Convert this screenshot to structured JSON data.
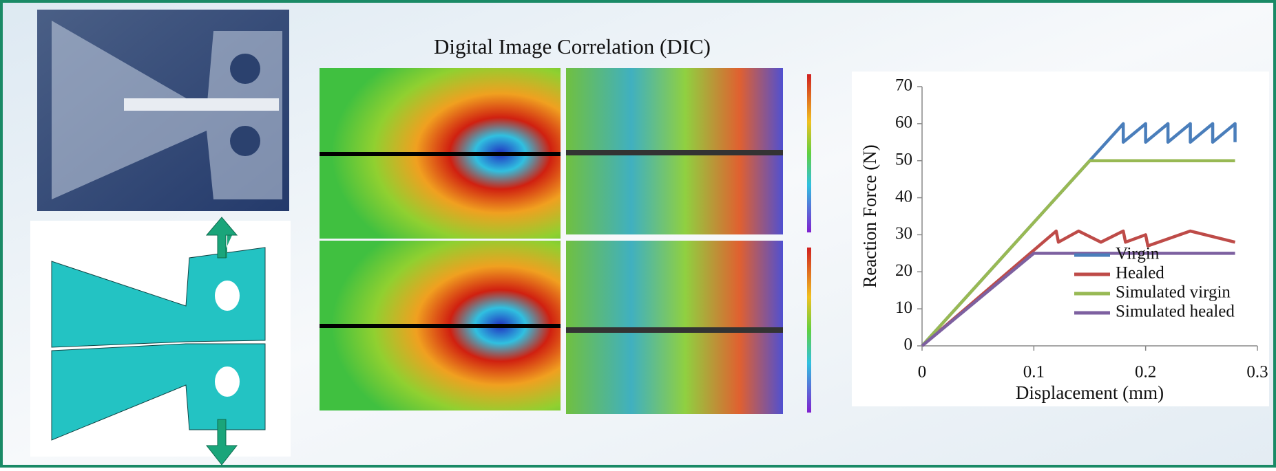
{
  "panel_title": "Digital Image Correlation (DIC)",
  "chart_data": {
    "type": "line",
    "ylabel": "Reaction Force (N)",
    "xlabel": "Displacement (mm)",
    "xlim": [
      0,
      0.3
    ],
    "ylim": [
      0,
      70
    ],
    "xticks": [
      0,
      0.1,
      0.2,
      0.3
    ],
    "yticks": [
      0,
      10,
      20,
      30,
      40,
      50,
      60,
      70
    ],
    "legend": "lower right",
    "series": [
      {
        "name": "Virgin",
        "color": "#4a7ebb",
        "x": [
          0,
          0.18,
          0.18,
          0.2,
          0.2,
          0.22,
          0.22,
          0.24,
          0.24,
          0.26,
          0.26,
          0.28,
          0.28
        ],
        "values": [
          0,
          60,
          55,
          60,
          55,
          60,
          55,
          60,
          55,
          60,
          55,
          60,
          55
        ]
      },
      {
        "name": "Healed",
        "color": "#be4b48",
        "x": [
          0,
          0.12,
          0.122,
          0.14,
          0.16,
          0.18,
          0.182,
          0.2,
          0.202,
          0.24,
          0.28
        ],
        "values": [
          0,
          31,
          28,
          31,
          28,
          31,
          28,
          30,
          27,
          31,
          28
        ]
      },
      {
        "name": "Simulated virgin",
        "color": "#98b954",
        "x": [
          0,
          0.15,
          0.28
        ],
        "values": [
          0,
          50,
          50
        ]
      },
      {
        "name": "Simulated healed",
        "color": "#7d60a0",
        "x": [
          0,
          0.1,
          0.28
        ],
        "values": [
          0,
          25,
          25
        ]
      }
    ]
  }
}
